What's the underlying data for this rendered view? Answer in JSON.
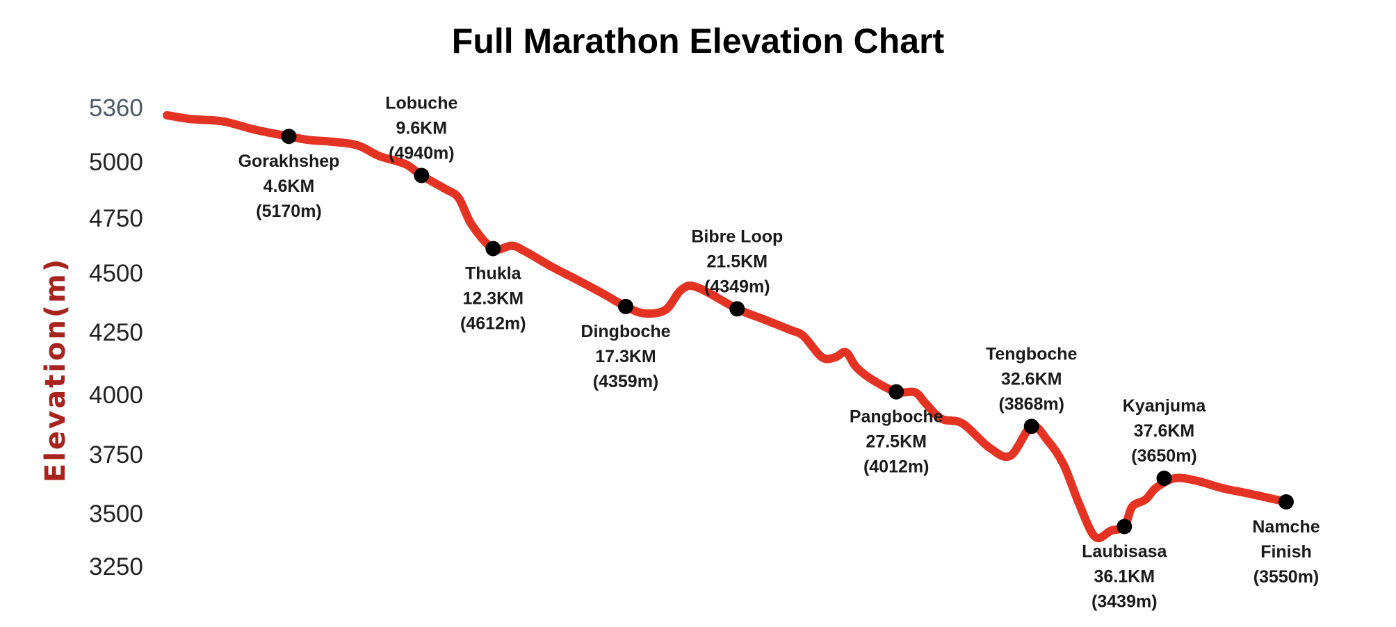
{
  "chart_data": {
    "type": "line",
    "title": "Full Marathon Elevation Chart",
    "ylabel": "Elevation(m)",
    "xlabel": "",
    "ylim": [
      3250,
      5360
    ],
    "y_ticks": [
      5360,
      5000,
      4750,
      4500,
      4250,
      4000,
      3750,
      3500,
      3250
    ],
    "grid": false,
    "colors": {
      "line": "#e53323",
      "marker": "#000000",
      "ylabel": "#a8231c"
    },
    "profile": [
      [
        0.0,
        5310
      ],
      [
        0.9,
        5285
      ],
      [
        2.1,
        5270
      ],
      [
        3.3,
        5215
      ],
      [
        4.6,
        5170
      ],
      [
        5.4,
        5145
      ],
      [
        6.2,
        5135
      ],
      [
        7.2,
        5110
      ],
      [
        8.0,
        5040
      ],
      [
        9.0,
        4990
      ],
      [
        9.6,
        4940
      ],
      [
        10.5,
        4880
      ],
      [
        11.0,
        4840
      ],
      [
        11.5,
        4720
      ],
      [
        12.3,
        4612
      ],
      [
        13.0,
        4625
      ],
      [
        13.5,
        4600
      ],
      [
        14.5,
        4530
      ],
      [
        15.5,
        4470
      ],
      [
        16.5,
        4410
      ],
      [
        17.3,
        4359
      ],
      [
        18.0,
        4330
      ],
      [
        18.8,
        4345
      ],
      [
        19.4,
        4430
      ],
      [
        20.0,
        4440
      ],
      [
        21.5,
        4349
      ],
      [
        22.5,
        4305
      ],
      [
        23.5,
        4260
      ],
      [
        24.0,
        4235
      ],
      [
        24.7,
        4150
      ],
      [
        25.2,
        4150
      ],
      [
        25.6,
        4170
      ],
      [
        26.0,
        4110
      ],
      [
        26.6,
        4060
      ],
      [
        27.5,
        4012
      ],
      [
        28.2,
        4010
      ],
      [
        28.6,
        3965
      ],
      [
        29.2,
        3900
      ],
      [
        30.0,
        3880
      ],
      [
        31.0,
        3780
      ],
      [
        31.8,
        3745
      ],
      [
        32.6,
        3868
      ],
      [
        33.2,
        3810
      ],
      [
        33.8,
        3710
      ],
      [
        34.4,
        3540
      ],
      [
        35.0,
        3390
      ],
      [
        35.6,
        3420
      ],
      [
        36.1,
        3439
      ],
      [
        36.4,
        3530
      ],
      [
        36.9,
        3560
      ],
      [
        37.3,
        3610
      ],
      [
        38.0,
        3650
      ],
      [
        38.8,
        3640
      ],
      [
        39.8,
        3608
      ],
      [
        40.8,
        3585
      ],
      [
        42.2,
        3550
      ]
    ],
    "checkpoints": [
      {
        "name": "Gorakhshep",
        "km": 4.6,
        "distance": "4.6KM",
        "elevation": 5170,
        "elevation_label": "(5170m)",
        "label_position": "below"
      },
      {
        "name": "Lobuche",
        "km": 9.6,
        "distance": "9.6KM",
        "elevation": 4940,
        "elevation_label": "(4940m)",
        "label_position": "above"
      },
      {
        "name": "Thukla",
        "km": 12.3,
        "distance": "12.3KM",
        "elevation": 4612,
        "elevation_label": "(4612m)",
        "label_position": "below"
      },
      {
        "name": "Dingboche",
        "km": 17.3,
        "distance": "17.3KM",
        "elevation": 4359,
        "elevation_label": "(4359m)",
        "label_position": "below"
      },
      {
        "name": "Bibre Loop",
        "km": 21.5,
        "distance": "21.5KM",
        "elevation": 4349,
        "elevation_label": "(4349m)",
        "label_position": "above"
      },
      {
        "name": "Pangboche",
        "km": 27.5,
        "distance": "27.5KM",
        "elevation": 4012,
        "elevation_label": "(4012m)",
        "label_position": "below"
      },
      {
        "name": "Tengboche",
        "km": 32.6,
        "distance": "32.6KM",
        "elevation": 3868,
        "elevation_label": "(3868m)",
        "label_position": "above"
      },
      {
        "name": "Laubisasa",
        "km": 36.1,
        "distance": "36.1KM",
        "elevation": 3439,
        "elevation_label": "(3439m)",
        "label_position": "below"
      },
      {
        "name": "Kyanjuma",
        "km": 37.6,
        "distance": "37.6KM",
        "elevation": 3650,
        "elevation_label": "(3650m)",
        "label_position": "above"
      },
      {
        "name": "Namche",
        "line2": "Finish",
        "km": 42.2,
        "elevation": 3550,
        "elevation_label": "(3550m)",
        "label_position": "below"
      }
    ]
  }
}
